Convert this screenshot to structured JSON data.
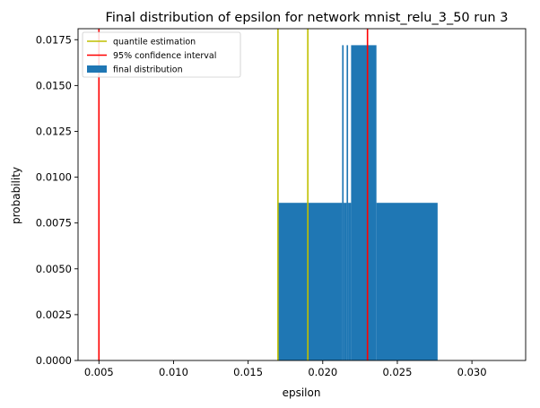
{
  "chart_data": {
    "type": "bar",
    "title": "Final distribution of epsilon for network mnist_relu_3_50 run 3",
    "xlabel": "epsilon",
    "ylabel": "probability",
    "xlim": [
      0.0036,
      0.0336
    ],
    "ylim": [
      0,
      0.0181
    ],
    "xticks": [
      0.005,
      0.01,
      0.015,
      0.02,
      0.025,
      0.03
    ],
    "xtick_labels": [
      "0.005",
      "0.010",
      "0.015",
      "0.020",
      "0.025",
      "0.030"
    ],
    "yticks": [
      0.0,
      0.0025,
      0.005,
      0.0075,
      0.01,
      0.0125,
      0.015,
      0.0175
    ],
    "ytick_labels": [
      "0.0000",
      "0.0025",
      "0.0050",
      "0.0075",
      "0.0100",
      "0.0125",
      "0.0150",
      "0.0175"
    ],
    "grid": false,
    "legend_position": "top-left",
    "legend": [
      {
        "label": "quantile estimation",
        "kind": "line",
        "color": "#bfbf00"
      },
      {
        "label": "95% confidence interval",
        "kind": "line",
        "color": "#ff0000"
      },
      {
        "label": "final distribution",
        "kind": "patch",
        "color": "#1f77b4"
      }
    ],
    "histogram": {
      "color": "#1f77b4",
      "bins": [
        {
          "x0": 0.017,
          "x1": 0.0213,
          "y": 0.0086
        },
        {
          "x0": 0.0213,
          "x1": 0.0214,
          "y": 0.0172
        },
        {
          "x0": 0.0214,
          "x1": 0.0216,
          "y": 0.0086
        },
        {
          "x0": 0.0216,
          "x1": 0.0217,
          "y": 0.0172
        },
        {
          "x0": 0.0217,
          "x1": 0.0219,
          "y": 0.0086
        },
        {
          "x0": 0.0219,
          "x1": 0.0236,
          "y": 0.0172
        },
        {
          "x0": 0.0236,
          "x1": 0.0277,
          "y": 0.0086
        }
      ]
    },
    "vlines": [
      {
        "series": "quantile estimation",
        "x": 0.017,
        "color": "#bfbf00"
      },
      {
        "series": "quantile estimation",
        "x": 0.019,
        "color": "#bfbf00"
      },
      {
        "series": "95% confidence interval",
        "x": 0.005,
        "color": "#ff0000"
      },
      {
        "series": "95% confidence interval",
        "x": 0.023,
        "color": "#ff0000"
      }
    ]
  }
}
